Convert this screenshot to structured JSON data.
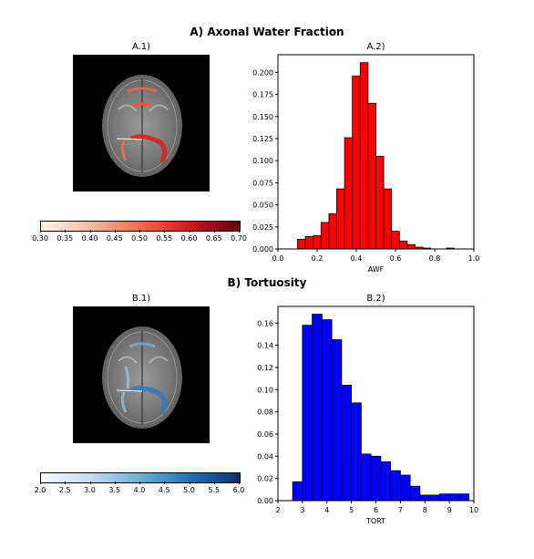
{
  "sections": {
    "a_title": "A) Axonal Water Fraction",
    "b_title": "B) Tortuosity"
  },
  "panels": {
    "a1_title": "A.1)",
    "a2_title": "A.2)",
    "b1_title": "B.1)",
    "b2_title": "B.2)"
  },
  "colorbars": {
    "a": {
      "ticks": [
        "0.30",
        "0.35",
        "0.40",
        "0.45",
        "0.50",
        "0.55",
        "0.60",
        "0.65",
        "0.70"
      ],
      "min": 0.3,
      "max": 0.7,
      "low_color": "#fff5f0",
      "high_color": "#67000d",
      "cmap": "Reds"
    },
    "b": {
      "ticks": [
        "2.0",
        "2.5",
        "3.0",
        "3.5",
        "4.0",
        "4.5",
        "5.0",
        "5.5",
        "6.0"
      ],
      "min": 2.0,
      "max": 6.0,
      "low_color": "#f7fbff",
      "high_color": "#08306b",
      "cmap": "Blues"
    }
  },
  "chart_data": [
    {
      "type": "bar",
      "title": "A.2)",
      "xlabel": "AWF",
      "ylabel": "",
      "color": "#ff0000",
      "xlim": [
        0.0,
        1.0
      ],
      "ylim": [
        0.0,
        0.22
      ],
      "xticks": [
        "0.0",
        "0.2",
        "0.4",
        "0.6",
        "0.8",
        "1.0"
      ],
      "xtick_values": [
        0.0,
        0.2,
        0.4,
        0.6,
        0.8,
        1.0
      ],
      "yticks": [
        "0.000",
        "0.025",
        "0.050",
        "0.075",
        "0.100",
        "0.125",
        "0.150",
        "0.175",
        "0.200"
      ],
      "ytick_values": [
        0.0,
        0.025,
        0.05,
        0.075,
        0.1,
        0.125,
        0.15,
        0.175,
        0.2
      ],
      "bin_edges": [
        0.1,
        0.14,
        0.18,
        0.22,
        0.26,
        0.3,
        0.34,
        0.38,
        0.42,
        0.46,
        0.5,
        0.54,
        0.58,
        0.62,
        0.66,
        0.7,
        0.74,
        0.78,
        0.82,
        0.86,
        0.9
      ],
      "values": [
        0.011,
        0.014,
        0.015,
        0.03,
        0.04,
        0.068,
        0.126,
        0.196,
        0.211,
        0.165,
        0.105,
        0.068,
        0.02,
        0.009,
        0.005,
        0.002,
        0.001,
        0.0,
        0.0,
        0.001
      ]
    },
    {
      "type": "bar",
      "title": "B.2)",
      "xlabel": "TORT",
      "ylabel": "",
      "color": "#0000ff",
      "xlim": [
        2,
        10
      ],
      "ylim": [
        0.0,
        0.175
      ],
      "xticks": [
        "2",
        "3",
        "4",
        "5",
        "6",
        "7",
        "8",
        "9",
        "10"
      ],
      "xtick_values": [
        2,
        3,
        4,
        5,
        6,
        7,
        8,
        9,
        10
      ],
      "yticks": [
        "0.00",
        "0.02",
        "0.04",
        "0.06",
        "0.08",
        "0.10",
        "0.12",
        "0.14",
        "0.16"
      ],
      "ytick_values": [
        0.0,
        0.02,
        0.04,
        0.06,
        0.08,
        0.1,
        0.12,
        0.14,
        0.16
      ],
      "bin_edges": [
        2.6,
        3.0,
        3.4,
        3.8,
        4.2,
        4.6,
        5.0,
        5.4,
        5.8,
        6.2,
        6.6,
        7.0,
        7.4,
        7.8,
        8.2,
        8.6,
        9.0,
        9.4,
        9.8,
        10.2
      ],
      "values": [
        0.017,
        0.158,
        0.168,
        0.163,
        0.145,
        0.104,
        0.088,
        0.042,
        0.04,
        0.035,
        0.027,
        0.023,
        0.013,
        0.005,
        0.005,
        0.006,
        0.006,
        0.006,
        0.0
      ]
    }
  ]
}
